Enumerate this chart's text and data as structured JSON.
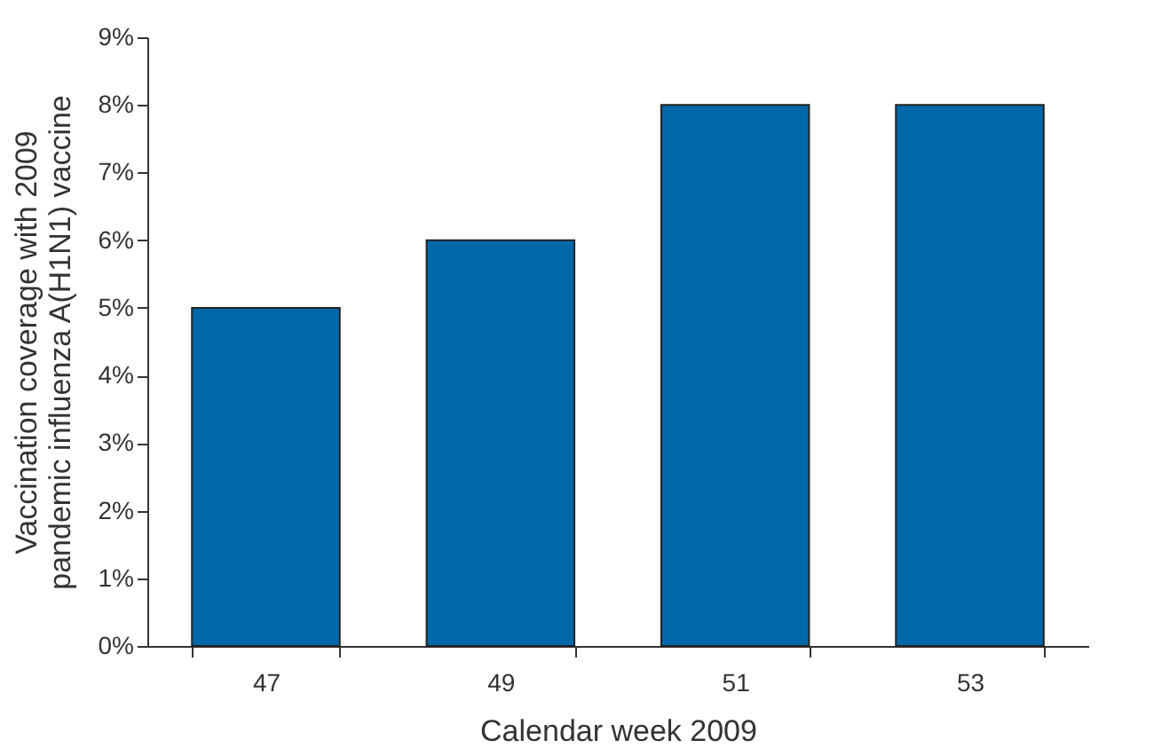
{
  "chart_data": {
    "type": "bar",
    "xlabel": "Calendar week 2009",
    "ylabel": "Vaccination coverage with 2009 pandemic influenza A(H1N1) vaccine",
    "categories": [
      "47",
      "49",
      "51",
      "53"
    ],
    "values": [
      5,
      6,
      8,
      8
    ],
    "color": "#0068a8",
    "ylim": [
      0,
      9
    ],
    "yticks": [
      {
        "value": 0,
        "label": "0%"
      },
      {
        "value": 1,
        "label": "1%"
      },
      {
        "value": 2,
        "label": "2%"
      },
      {
        "value": 3,
        "label": "3%"
      },
      {
        "value": 4,
        "label": "4%"
      },
      {
        "value": 5,
        "label": "5%"
      },
      {
        "value": 6,
        "label": "6%"
      },
      {
        "value": 7,
        "label": "7%"
      },
      {
        "value": 8,
        "label": "8%"
      },
      {
        "value": 9,
        "label": "9%"
      }
    ]
  }
}
